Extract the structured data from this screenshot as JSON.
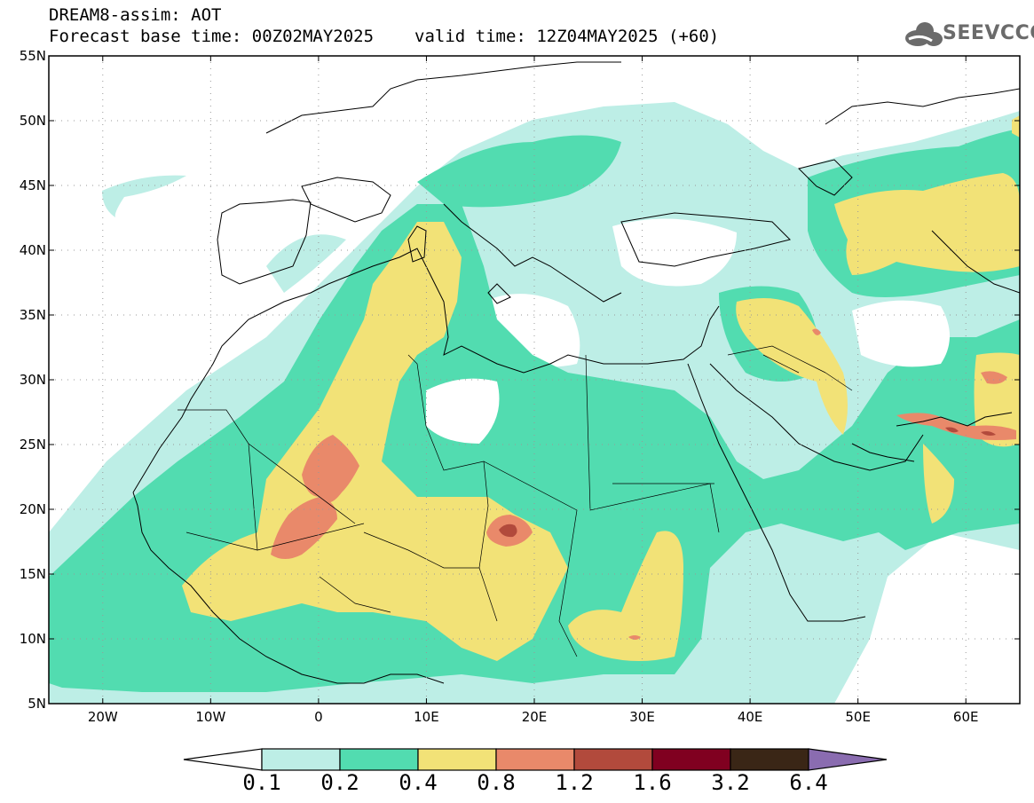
{
  "header": {
    "title": "DREAM8-assim: AOT",
    "base_time": "Forecast base time: 00Z02MAY2025",
    "valid_time": "valid time: 12Z04MAY2025 (+60)"
  },
  "logo": {
    "text": "SEEVCCC",
    "icon": "cloud-icon"
  },
  "map": {
    "extent": {
      "lon": [
        -25,
        65
      ],
      "lat": [
        5,
        55
      ]
    },
    "lat_ticks": [
      {
        "value": 55,
        "label": "55N"
      },
      {
        "value": 50,
        "label": "50N"
      },
      {
        "value": 45,
        "label": "45N"
      },
      {
        "value": 40,
        "label": "40N"
      },
      {
        "value": 35,
        "label": "35N"
      },
      {
        "value": 30,
        "label": "30N"
      },
      {
        "value": 25,
        "label": "25N"
      },
      {
        "value": 20,
        "label": "20N"
      },
      {
        "value": 15,
        "label": "15N"
      },
      {
        "value": 10,
        "label": "10N"
      },
      {
        "value": 5,
        "label": "5N"
      }
    ],
    "lon_ticks": [
      {
        "value": -20,
        "label": "20W"
      },
      {
        "value": -10,
        "label": "10W"
      },
      {
        "value": 0,
        "label": "0"
      },
      {
        "value": 10,
        "label": "10E"
      },
      {
        "value": 20,
        "label": "20E"
      },
      {
        "value": 30,
        "label": "30E"
      },
      {
        "value": 40,
        "label": "40E"
      },
      {
        "value": 50,
        "label": "50E"
      },
      {
        "value": 60,
        "label": "60E"
      }
    ],
    "field_colors": [
      "#bdeee6",
      "#52dcb0",
      "#f2e277",
      "#e9896a",
      "#b24a3c",
      "#800020",
      "#3a2616",
      "#8a6cb0"
    ]
  },
  "colorbar": {
    "levels": [
      "0.1",
      "0.2",
      "0.4",
      "0.8",
      "1.2",
      "1.6",
      "3.2",
      "6.4"
    ],
    "colors": [
      "#bdeee6",
      "#52dcb0",
      "#f2e277",
      "#e9896a",
      "#b24a3c",
      "#800020",
      "#3a2616"
    ],
    "under_color": "#ffffff",
    "over_color": "#8a6cb0"
  }
}
